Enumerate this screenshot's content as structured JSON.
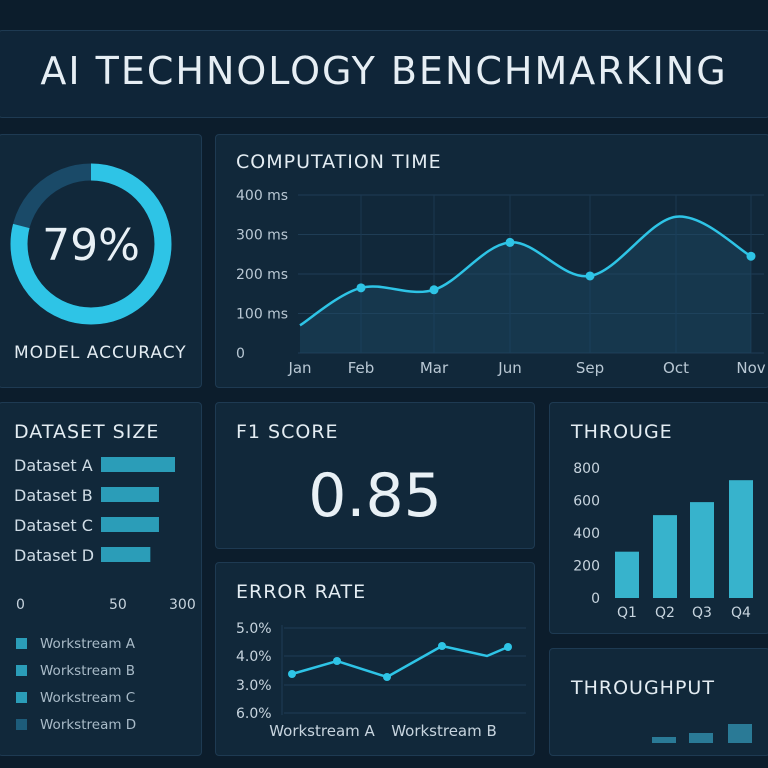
{
  "header": {
    "title": "AI TECHNOLOGY BENCHMARKING"
  },
  "accuracy": {
    "value_label": "79%",
    "label": "MODEL ACCURACY",
    "fraction": 0.79
  },
  "colors": {
    "accent": "#2ec4e6",
    "bar": "#37b3cc",
    "panel": "#11283a",
    "ring_track": "#1a4a68"
  },
  "chart_data": [
    {
      "id": "computation",
      "type": "line",
      "title": "COMPUTATION TIME",
      "categories": [
        "Jan",
        "Feb",
        "Mar",
        "Jun",
        "Sep",
        "Oct",
        "Nov"
      ],
      "values": [
        70,
        165,
        160,
        280,
        195,
        345,
        245
      ],
      "yticks": [
        "0",
        "100 ms",
        "200 ms",
        "300 ms",
        "400 ms"
      ],
      "ylim": [
        0,
        400
      ]
    },
    {
      "id": "dataset",
      "type": "bar",
      "title": "DATASET SIZE",
      "categories": [
        "Dataset A",
        "Dataset B",
        "Dataset C",
        "Dataset D"
      ],
      "values": [
        300,
        235,
        235,
        200
      ],
      "xticks": [
        "0",
        "50",
        "300"
      ],
      "legend": [
        "Workstream A",
        "Workstream B",
        "Workstream C",
        "Workstream D"
      ]
    },
    {
      "id": "throughput",
      "type": "bar",
      "title": "THROUGE",
      "categories": [
        "Q1",
        "Q2",
        "Q3",
        "Q4"
      ],
      "values": [
        285,
        510,
        590,
        725
      ],
      "yticks": [
        "0",
        "200",
        "400",
        "600",
        "800"
      ],
      "ylim": [
        0,
        800
      ]
    },
    {
      "id": "error",
      "type": "line",
      "title": "ERROR RATE",
      "yticks": [
        "6.0%",
        "3.0%",
        "4.0%",
        "5.0%"
      ],
      "xticks": [
        "Workstream A",
        "Workstream B"
      ]
    },
    {
      "id": "throughput2",
      "type": "bar",
      "title": "THROUGHPUT"
    }
  ],
  "f1": {
    "title": "F1 SCORE",
    "value": "0.85"
  }
}
